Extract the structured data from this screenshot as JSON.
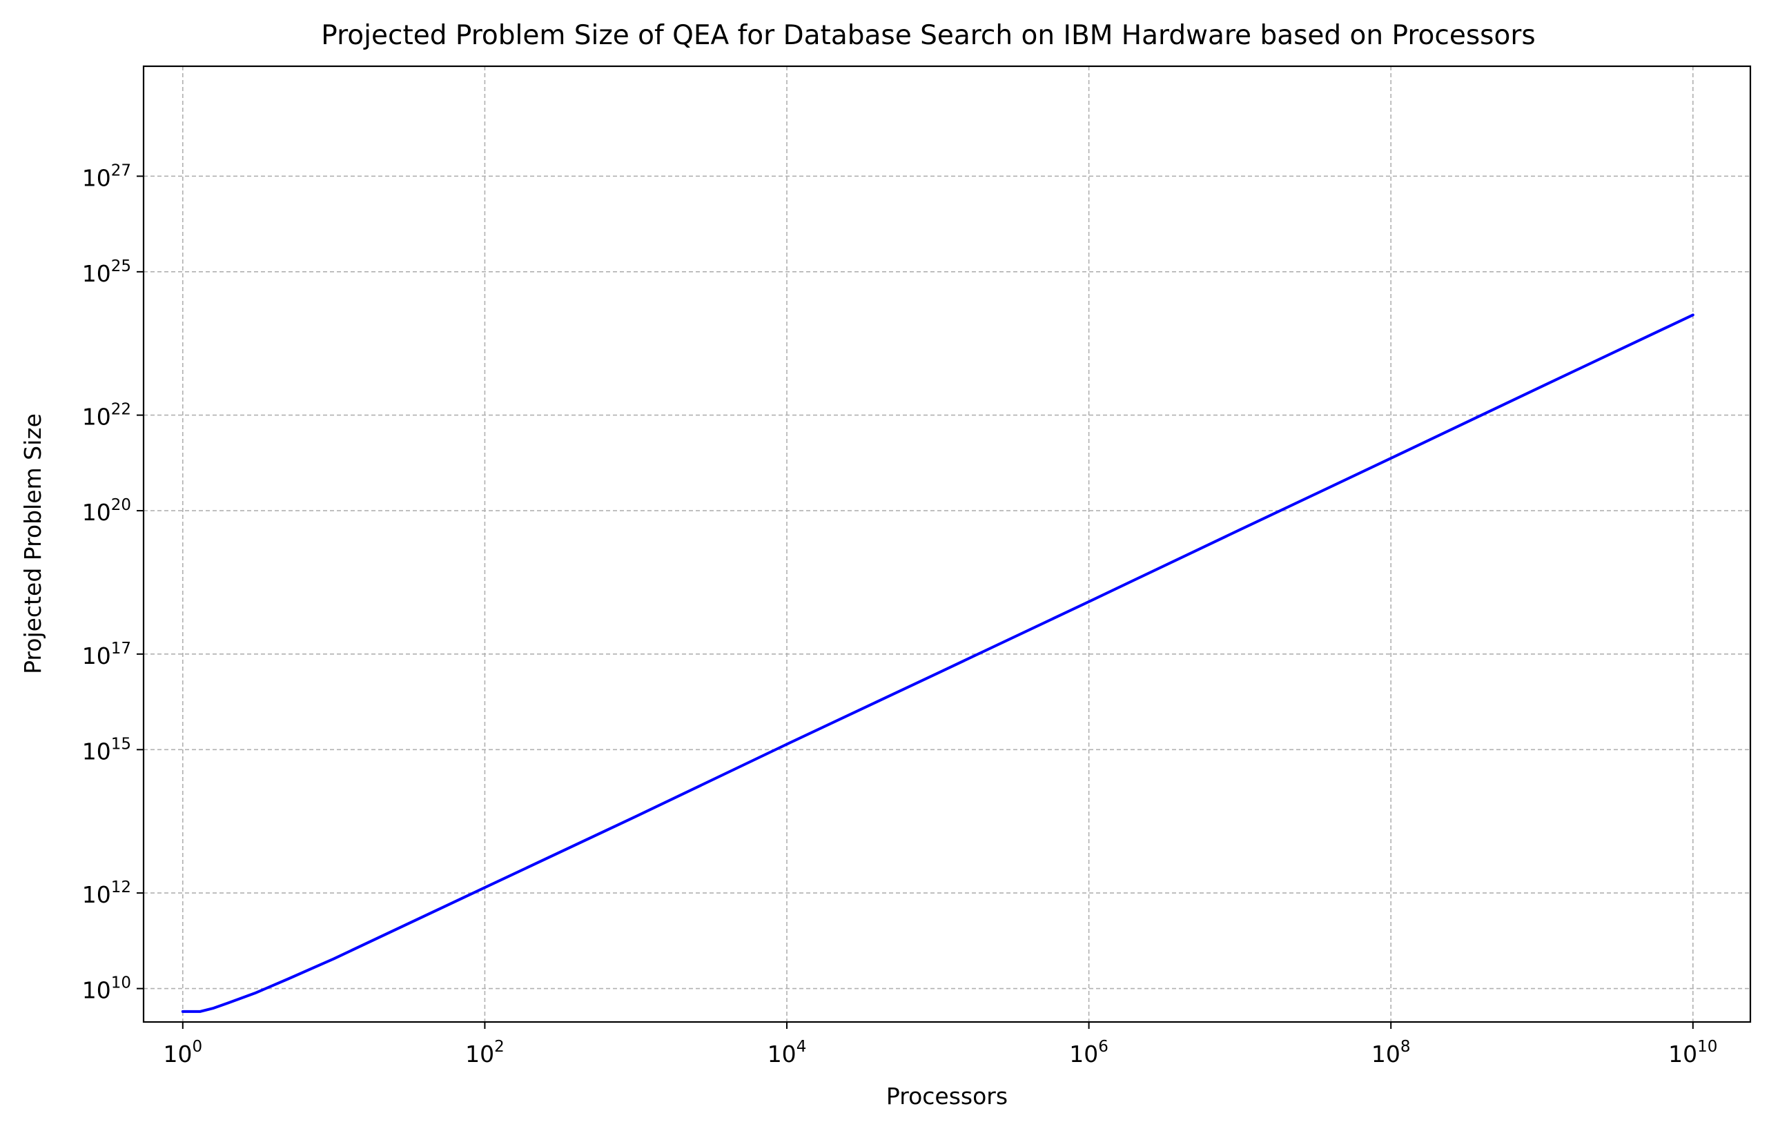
{
  "chart_data": {
    "type": "line",
    "title": "Projected Problem Size of QEA for Database Search on IBM Hardware based on Processors",
    "xlabel": "Processors",
    "ylabel": "Projected Problem Size",
    "xscale": "log",
    "yscale": "log",
    "grid": true,
    "xlim": [
      0.55,
      24000000000
    ],
    "ylim": [
      2000000000,
      200000000000000000000000000000
    ],
    "x_ticks": [
      {
        "value": 1,
        "base": "10",
        "exp": "0"
      },
      {
        "value": 100,
        "base": "10",
        "exp": "2"
      },
      {
        "value": 10000,
        "base": "10",
        "exp": "4"
      },
      {
        "value": 1000000,
        "base": "10",
        "exp": "6"
      },
      {
        "value": 100000000,
        "base": "10",
        "exp": "8"
      },
      {
        "value": 10000000000,
        "base": "10",
        "exp": "10"
      }
    ],
    "y_ticks": [
      {
        "value": 10000000000,
        "base": "10",
        "exp": "10"
      },
      {
        "value": 1000000000000,
        "base": "10",
        "exp": "12"
      },
      {
        "value": 1000000000000000,
        "base": "10",
        "exp": "15"
      },
      {
        "value": 100000000000000000,
        "base": "10",
        "exp": "17"
      },
      {
        "value": 100000000000000000000,
        "base": "10",
        "exp": "20"
      },
      {
        "value": 10000000000000000000000,
        "base": "10",
        "exp": "22"
      },
      {
        "value": 10000000000000000000000000,
        "base": "10",
        "exp": "25"
      },
      {
        "value": 1000000000000000000000000000,
        "base": "10",
        "exp": "27"
      }
    ],
    "series": [
      {
        "color": "#0000ff",
        "x": [
          1,
          1.3,
          1.6,
          2,
          3,
          5,
          10,
          100,
          1000,
          10000,
          100000,
          1000000,
          10000000,
          100000000,
          1000000000,
          10000000000
        ],
        "y": [
          3300000000,
          3300000000,
          3900000000,
          5000000000,
          8000000000,
          16000000000,
          42000000000,
          1300000000000,
          40000000000000,
          1300000000000000,
          40000000000000000,
          1250000000000000000,
          40000000000000000000,
          1250000000000000000000,
          40000000000000000000000,
          1250000000000000000000000
        ]
      }
    ]
  }
}
